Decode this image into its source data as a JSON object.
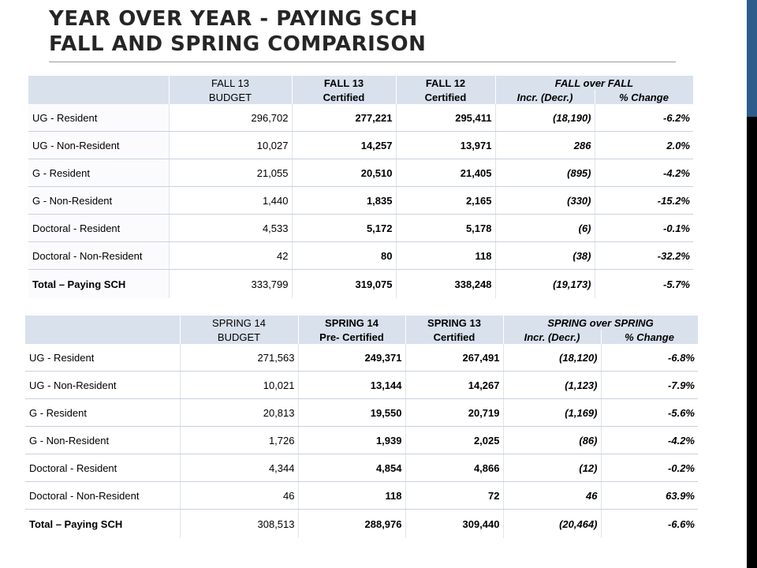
{
  "slide": {
    "title_line1": "YEAR OVER YEAR - PAYING SCH",
    "title_line2": "FALL AND SPRING COMPARISON"
  },
  "fall_table": {
    "header1": [
      "",
      "FALL 13",
      "FALL 13",
      "FALL 12",
      "FALL over FALL"
    ],
    "header2": [
      "",
      "BUDGET",
      "Certified",
      "Certified",
      "Incr. (Decr.)",
      "% Change"
    ],
    "rows": [
      [
        "UG - Resident",
        "296,702",
        "277,221",
        "295,411",
        "(18,190)",
        "-6.2%"
      ],
      [
        "UG - Non-Resident",
        "10,027",
        "14,257",
        "13,971",
        "286",
        "2.0%"
      ],
      [
        "G - Resident",
        "21,055",
        "20,510",
        "21,405",
        "(895)",
        "-4.2%"
      ],
      [
        "G - Non-Resident",
        "1,440",
        "1,835",
        "2,165",
        "(330)",
        "-15.2%"
      ],
      [
        "Doctoral - Resident",
        "4,533",
        "5,172",
        "5,178",
        "(6)",
        "-0.1%"
      ],
      [
        "Doctoral - Non-Resident",
        "42",
        "80",
        "118",
        "(38)",
        "-32.2%"
      ]
    ],
    "total": [
      "Total – Paying SCH",
      "333,799",
      "319,075",
      "338,248",
      "(19,173)",
      "-5.7%"
    ]
  },
  "spring_table": {
    "header1": [
      "",
      "SPRING 14",
      "SPRING 14",
      "SPRING 13",
      "SPRING over SPRING"
    ],
    "header2": [
      "",
      "BUDGET",
      "Pre- Certified",
      "Certified",
      "Incr. (Decr.)",
      "% Change"
    ],
    "rows": [
      [
        "UG - Resident",
        "271,563",
        "249,371",
        "267,491",
        "(18,120)",
        "-6.8%"
      ],
      [
        "UG - Non-Resident",
        "10,021",
        "13,144",
        "14,267",
        "(1,123)",
        "-7.9%"
      ],
      [
        "G - Resident",
        "20,813",
        "19,550",
        "20,719",
        "(1,169)",
        "-5.6%"
      ],
      [
        "G - Non-Resident",
        "1,726",
        "1,939",
        "2,025",
        "(86)",
        "-4.2%"
      ],
      [
        "Doctoral - Resident",
        "4,344",
        "4,854",
        "4,866",
        "(12)",
        "-0.2%"
      ],
      [
        "Doctoral - Non-Resident",
        "46",
        "118",
        "72",
        "46",
        "63.9%"
      ]
    ],
    "total": [
      "Total – Paying SCH",
      "308,513",
      "288,976",
      "309,440",
      "(20,464)",
      "-6.6%"
    ]
  }
}
